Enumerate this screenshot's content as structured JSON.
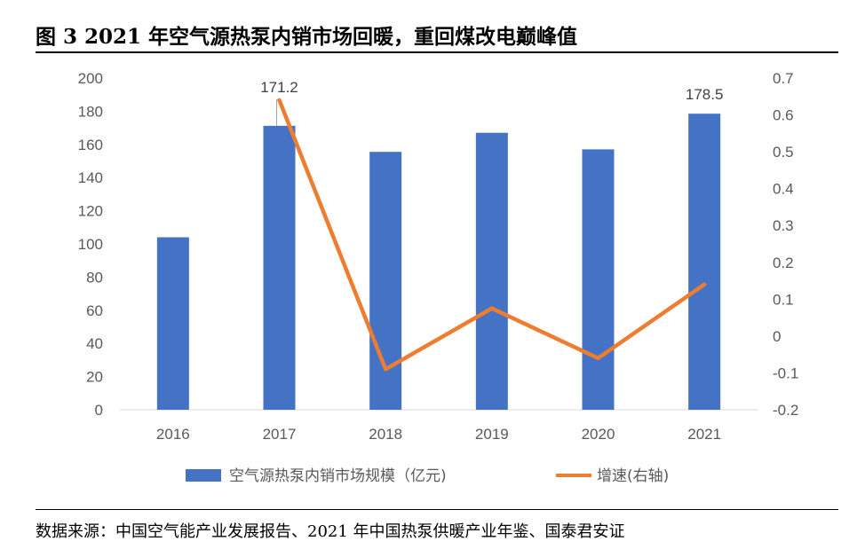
{
  "figure_title": "图 3 2021 年空气源热泵内销市场回暖，重回煤改电巅峰值",
  "source_note": "数据来源：中国空气能产业发展报告、2021 年中国热泵供暖产业年鉴、国泰君安证",
  "chart_data": {
    "type": "bar",
    "categories": [
      "2016",
      "2017",
      "2018",
      "2019",
      "2020",
      "2021"
    ],
    "series": [
      {
        "name": "空气源热泵内销市场规模（亿元)",
        "type": "bar",
        "axis": "left",
        "color": "#4472C4",
        "values": [
          104,
          171.2,
          155.5,
          167,
          157,
          178.5
        ]
      },
      {
        "name": "增速(右轴)",
        "type": "line",
        "axis": "right",
        "color": "#ED7D31",
        "values": [
          null,
          0.64,
          -0.09,
          0.075,
          -0.06,
          0.14
        ]
      }
    ],
    "data_labels": [
      {
        "category": "2017",
        "text": "171.2"
      },
      {
        "category": "2021",
        "text": "178.5"
      }
    ],
    "left_axis": {
      "ylim": [
        0,
        200
      ],
      "ticks": [
        "0",
        "20",
        "40",
        "60",
        "80",
        "100",
        "120",
        "140",
        "160",
        "180",
        "200"
      ]
    },
    "right_axis": {
      "ylim": [
        -0.2,
        0.7
      ],
      "ticks": [
        "-0.2",
        "-0.1",
        "0",
        "0.1",
        "0.2",
        "0.3",
        "0.4",
        "0.5",
        "0.6",
        "0.7"
      ]
    },
    "grid": false,
    "legend_position": "bottom"
  }
}
